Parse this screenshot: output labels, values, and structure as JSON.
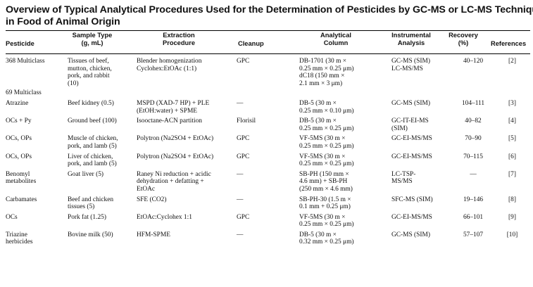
{
  "title": {
    "line1": "Overview of Typical Analytical Procedures Used for the Determination of Pesticides by GC-MS or LC-MS Techniques",
    "line2": "in Food of Animal Origin"
  },
  "headers": {
    "pesticide": "Pesticide",
    "sample_type": [
      "Sample Type",
      "(g, mL)"
    ],
    "extraction": [
      "Extraction",
      "Procedure"
    ],
    "cleanup": "Cleanup",
    "column": [
      "Analytical",
      "Column"
    ],
    "instrumental": [
      "Instrumental",
      "Analysis"
    ],
    "recovery": [
      "Recovery",
      "(%)"
    ],
    "references": "References"
  },
  "rows": [
    {
      "pesticide": [
        "368 Multiclass"
      ],
      "sample": [
        "Tissues of beef,",
        "mutton, chicken,",
        "pork, and rabbit",
        "(10)"
      ],
      "extraction": [
        "Blender homogenization",
        "Cyclohex:EtOAc (1:1)"
      ],
      "cleanup": [
        "GPC"
      ],
      "column": [
        "DB-1701 (30 m ×",
        "0.25 mm × 0.25 μm)",
        "dC18 (150 mm ×",
        "2.1 mm × 3 μm)"
      ],
      "instrumental": [
        "GC-MS (SIM)",
        "LC-MS/MS"
      ],
      "recovery": [
        "40–120"
      ],
      "reference": [
        "[2]"
      ]
    },
    {
      "pesticide": [
        "69 Multiclass"
      ],
      "sample": [],
      "extraction": [],
      "cleanup": [],
      "column": [],
      "instrumental": [],
      "recovery": [],
      "reference": []
    },
    {
      "pesticide": [
        "Atrazine"
      ],
      "sample": [
        "Beef kidney (0.5)"
      ],
      "extraction": [
        "MSPD (XAD-7 HP) + PLE",
        "(EtOH:water) + SPME"
      ],
      "cleanup": [
        "—"
      ],
      "column": [
        "DB-5 (30 m ×",
        "0.25 mm × 0.10 μm)"
      ],
      "instrumental": [
        "GC-MS (SIM)"
      ],
      "recovery": [
        "104–111"
      ],
      "reference": [
        "[3]"
      ]
    },
    {
      "pesticide": [
        "OCs + Py"
      ],
      "sample": [
        "Ground beef (100)"
      ],
      "extraction": [
        "Isooctane-ACN partition"
      ],
      "cleanup": [
        "Florisil"
      ],
      "column": [
        "DB-5 (30 m ×",
        "0.25 mm × 0.25 μm)"
      ],
      "instrumental": [
        "GC-IT-EI-MS",
        "(SIM)"
      ],
      "recovery": [
        "40–82"
      ],
      "reference": [
        "[4]"
      ]
    },
    {
      "pesticide": [
        "OCs, OPs"
      ],
      "sample": [
        "Muscle of chicken,",
        "pork, and lamb (5)"
      ],
      "extraction": [
        "Polytron (Na2SO4 + EtOAc)"
      ],
      "cleanup": [
        "GPC"
      ],
      "column": [
        "VF-5MS (30 m ×",
        "0.25 mm × 0.25 μm)"
      ],
      "instrumental": [
        "GC-EI-MS/MS"
      ],
      "recovery": [
        "70–90"
      ],
      "reference": [
        "[5]"
      ]
    },
    {
      "pesticide": [
        "OCs, OPs"
      ],
      "sample": [
        "Liver of chicken,",
        "pork, and lamb (5)"
      ],
      "extraction": [
        "Polytron (Na2SO4 + EtOAc)"
      ],
      "cleanup": [
        "GPC"
      ],
      "column": [
        "VF-5MS (30 m ×",
        "0.25 mm × 0.25 μm)"
      ],
      "instrumental": [
        "GC-EI-MS/MS"
      ],
      "recovery": [
        "70–115"
      ],
      "reference": [
        "[6]"
      ]
    },
    {
      "pesticide": [
        "Benomyl",
        "metabolites"
      ],
      "sample": [
        "Goat liver (5)"
      ],
      "extraction": [
        "Raney Ni reduction + acidic",
        "dehydration + defatting +",
        "EtOAc"
      ],
      "cleanup": [
        "—"
      ],
      "column": [
        "SB-PH (150 mm ×",
        "4.6 mm) + SB-PH",
        "(250 mm × 4.6 mm)"
      ],
      "instrumental": [
        "LC-TSP-",
        "MS/MS"
      ],
      "recovery": [
        "—"
      ],
      "reference": [
        "[7]"
      ]
    },
    {
      "pesticide": [
        "Carbamates"
      ],
      "sample": [
        "Beef and chicken",
        "tissues (5)"
      ],
      "extraction": [
        "SFE (CO2)"
      ],
      "cleanup": [
        "—"
      ],
      "column": [
        "SB-PH-30 (1.5 m ×",
        "0.1 mm + 0.25 μm)"
      ],
      "instrumental": [
        "SFC-MS (SIM)"
      ],
      "recovery": [
        "19–146"
      ],
      "reference": [
        "[8]"
      ]
    },
    {
      "pesticide": [
        "OCs"
      ],
      "sample": [
        "Pork fat (1.25)"
      ],
      "extraction": [
        "EtOAc:Cyclohex 1:1"
      ],
      "cleanup": [
        "GPC"
      ],
      "column": [
        "VF-5MS (30 m ×",
        "0.25 mm × 0.25 μm)"
      ],
      "instrumental": [
        "GC-EI-MS/MS"
      ],
      "recovery": [
        "66–101"
      ],
      "reference": [
        "[9]"
      ]
    },
    {
      "pesticide": [
        "Triazine",
        "herbicides"
      ],
      "sample": [
        "Bovine milk (50)"
      ],
      "extraction": [
        "HFM-SPME"
      ],
      "cleanup": [
        "—"
      ],
      "column": [
        "DB-5 (30 m ×",
        "0.32 mm × 0.25 μm)"
      ],
      "instrumental": [
        "GC-MS (SIM)"
      ],
      "recovery": [
        "57–107"
      ],
      "reference": [
        "[10]"
      ]
    }
  ]
}
